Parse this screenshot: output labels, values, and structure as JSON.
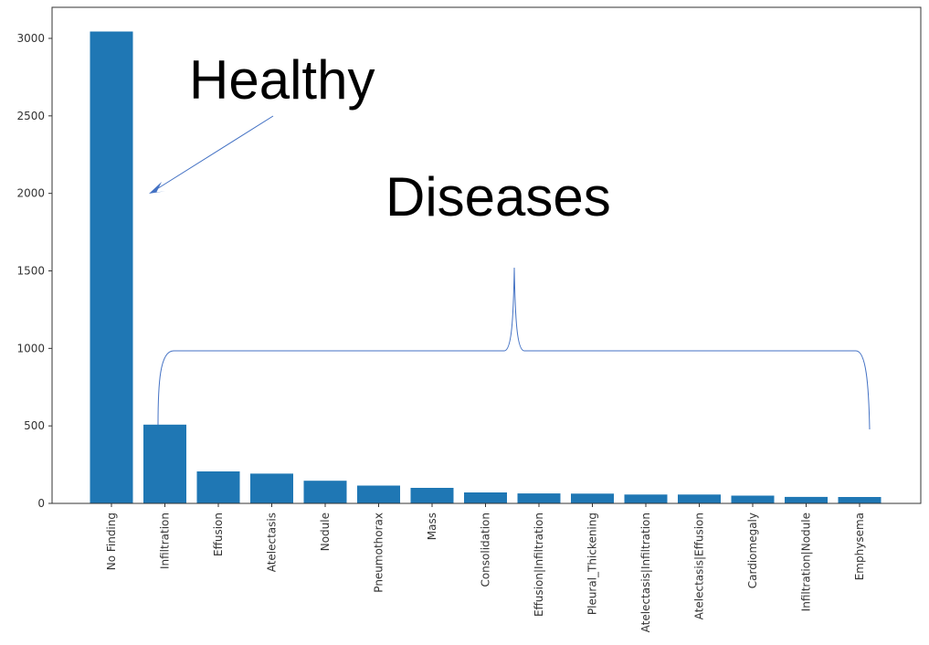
{
  "chart_data": {
    "type": "bar",
    "title": "",
    "xlabel": "",
    "ylabel": "",
    "categories": [
      "No Finding",
      "Infiltration",
      "Effusion",
      "Atelectasis",
      "Nodule",
      "Pneumothorax",
      "Mass",
      "Consolidation",
      "Effusion|Infiltration",
      "Pleural_Thickening",
      "Atelectasis|Infiltration",
      "Atelectasis|Effusion",
      "Cardiomegaly",
      "Infiltration|Nodule",
      "Emphysema"
    ],
    "values": [
      3044,
      508,
      206,
      192,
      146,
      115,
      100,
      71,
      64,
      63,
      57,
      57,
      50,
      42,
      41
    ],
    "ylim": [
      0,
      3200
    ],
    "yticks": [
      0,
      500,
      1000,
      1500,
      2000,
      2500,
      3000
    ],
    "grid": false,
    "bar_color": "#1f77b4",
    "annotations": {
      "healthy": "Healthy",
      "diseases": "Diseases"
    }
  }
}
